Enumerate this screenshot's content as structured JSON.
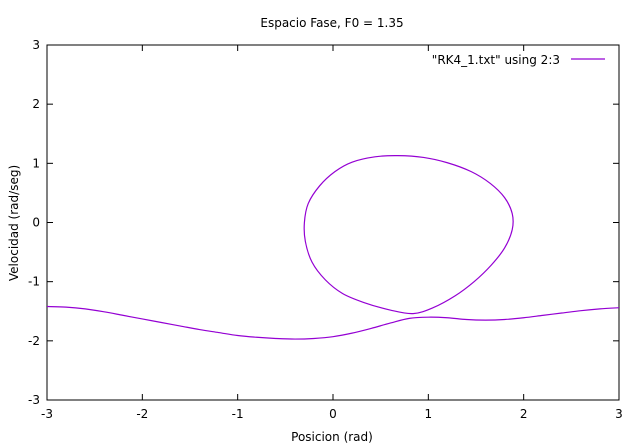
{
  "chart_data": {
    "type": "line",
    "title": "Espacio Fase, F0 = 1.35",
    "xlabel": "Posicion (rad)",
    "ylabel": "Velocidad (rad/seg)",
    "xlim": [
      -3,
      3
    ],
    "ylim": [
      -3,
      3
    ],
    "xticks": [
      "-3",
      "-2",
      "-1",
      "0",
      "1",
      "2",
      "3"
    ],
    "yticks": [
      "-3",
      "-2",
      "-1",
      "0",
      "1",
      "2",
      "3"
    ],
    "grid": false,
    "legend_position": "top-right",
    "series": [
      {
        "name": "\"RK4_1.txt\" using 2:3",
        "color": "#9400d3",
        "segments": [
          {
            "x": [
              -3.0,
              -2.8,
              -2.6,
              -2.4,
              -2.2,
              -2.0,
              -1.8,
              -1.6,
              -1.4,
              -1.2,
              -1.0,
              -0.8,
              -0.6,
              -0.4,
              -0.2,
              0.0,
              0.2,
              0.4,
              0.6,
              0.8,
              1.0,
              1.2,
              1.4,
              1.6,
              1.8,
              2.0,
              2.2,
              2.4,
              2.6,
              2.8,
              3.0
            ],
            "y": [
              -1.42,
              -1.43,
              -1.46,
              -1.51,
              -1.57,
              -1.63,
              -1.69,
              -1.75,
              -1.81,
              -1.86,
              -1.91,
              -1.94,
              -1.96,
              -1.97,
              -1.96,
              -1.93,
              -1.87,
              -1.79,
              -1.7,
              -1.62,
              -1.6,
              -1.61,
              -1.64,
              -1.65,
              -1.64,
              -1.61,
              -1.57,
              -1.53,
              -1.49,
              -1.46,
              -1.44
            ]
          },
          {
            "closed": true,
            "x": [
              0.68,
              0.95,
              1.2,
              1.45,
              1.65,
              1.8,
              1.88,
              1.88,
              1.8,
              1.66,
              1.48,
              1.28,
              1.05,
              0.84,
              0.6,
              0.32,
              0.1,
              -0.08,
              -0.22,
              -0.29,
              -0.3,
              -0.26,
              -0.14,
              0.02,
              0.2,
              0.44
            ],
            "y": [
              1.13,
              1.1,
              1.01,
              0.86,
              0.66,
              0.42,
              0.15,
              -0.12,
              -0.43,
              -0.72,
              -1.0,
              -1.24,
              -1.44,
              -1.54,
              -1.48,
              -1.35,
              -1.2,
              -0.97,
              -0.67,
              -0.32,
              0.0,
              0.32,
              0.62,
              0.86,
              1.02,
              1.11
            ]
          }
        ]
      }
    ]
  }
}
